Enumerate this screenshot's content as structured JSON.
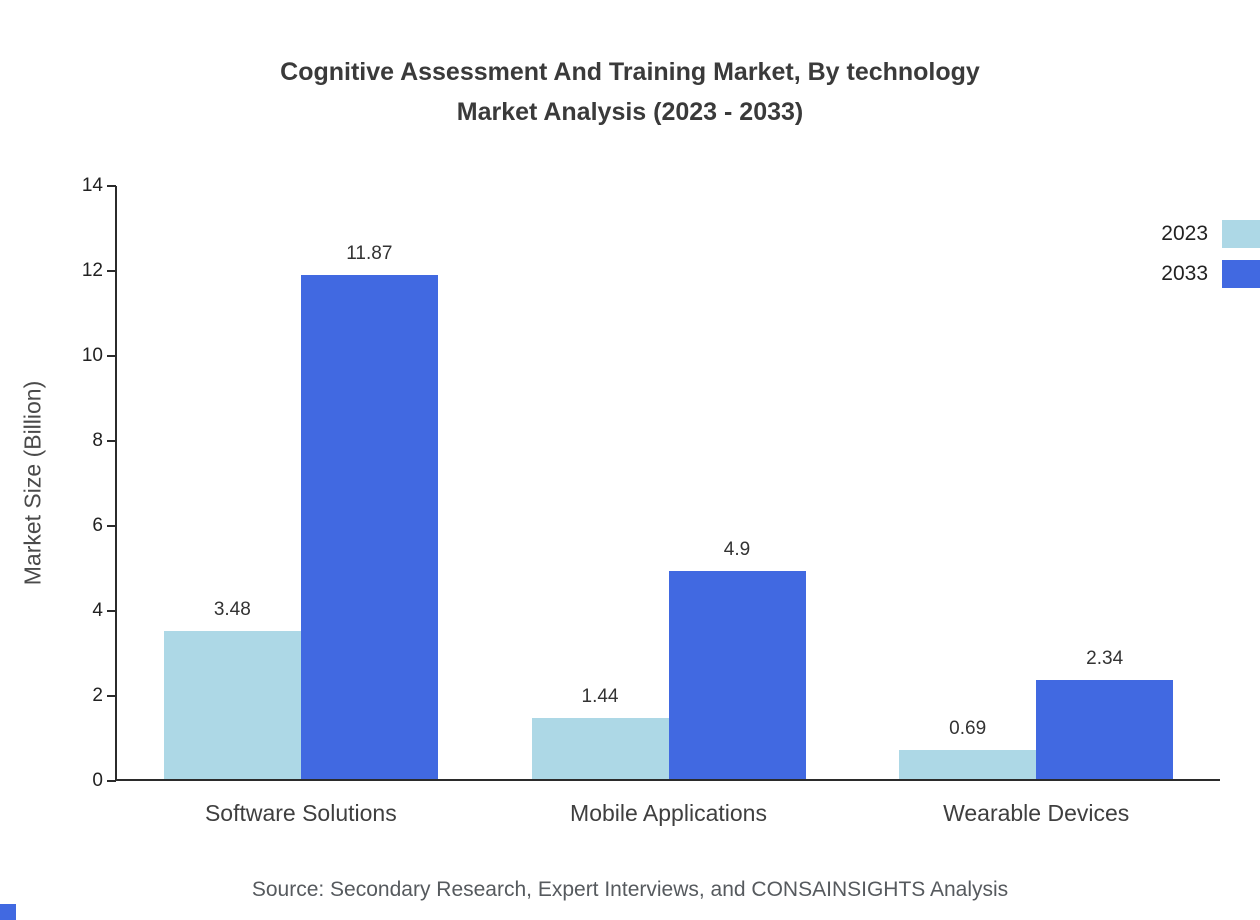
{
  "chart_data": {
    "type": "bar",
    "title": "Cognitive Assessment And Training Market, By technology\nMarket Analysis (2023 - 2033)",
    "xlabel": "",
    "ylabel": "Market Size (Billion)",
    "categories": [
      "Software Solutions",
      "Mobile Applications",
      "Wearable Devices"
    ],
    "series": [
      {
        "name": "2023",
        "color": "#ADD8E6",
        "values": [
          3.48,
          1.44,
          0.69
        ]
      },
      {
        "name": "2033",
        "color": "#4169E1",
        "values": [
          11.87,
          4.9,
          2.34
        ]
      }
    ],
    "ylim": [
      0,
      14
    ],
    "ytick_step": 2,
    "grid": false,
    "legend_position": "top-right"
  },
  "source": "Source: Secondary Research, Expert Interviews, and CONSAINSIGHTS Analysis",
  "colors": {
    "axis": "#2b2b2b",
    "accent": "#4169E1"
  }
}
